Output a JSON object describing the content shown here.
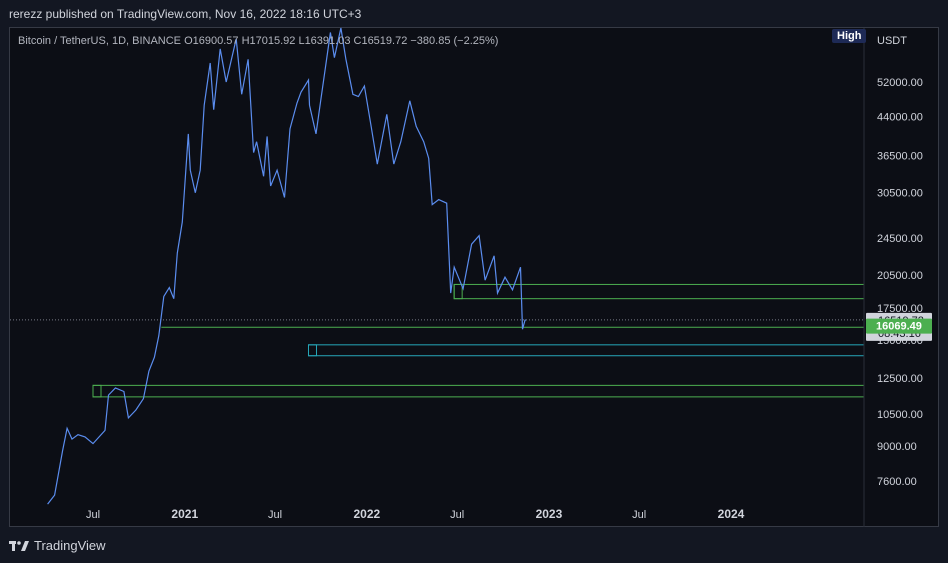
{
  "header": {
    "publish_line": "rerezz published on TradingView.com, Nov 16, 2022 18:16 UTC+3",
    "symbol_line": "Bitcoin / TetherUS, 1D, BINANCE  O16900.57  H17015.92  L16391.03  C16519.72  −380.85 (−2.25%)",
    "badge": "High",
    "currency": "USDT"
  },
  "footer": {
    "brand": "TradingView",
    "logo_icon": "tradingview-logo-icon"
  },
  "colors": {
    "background": "#0c0e15",
    "price_line": "#5b8def",
    "zone_green": "#4caf50",
    "zone_teal": "#26a6b8",
    "last_price_label": "#4caf50"
  },
  "chart_data": {
    "type": "line",
    "title": "",
    "scale": "log",
    "grid": false,
    "y_axis_ticks": [
      "52000.00",
      "44000.00",
      "36500.00",
      "30500.00",
      "24500.00",
      "20500.00",
      "17500.00",
      "15000.00",
      "12500.00",
      "10500.00",
      "9000.00",
      "7600.00"
    ],
    "y_axis_tick_values": [
      52000,
      44000,
      36500,
      30500,
      24500,
      20500,
      17500,
      15000,
      12500,
      10500,
      9000,
      7600
    ],
    "x_axis_ticks": [
      "Jul",
      "2021",
      "Jul",
      "2022",
      "Jul",
      "2023",
      "Jul",
      "2024"
    ],
    "x_axis_tick_dates": [
      "2020-07-01",
      "2021-01-01",
      "2021-07-01",
      "2022-01-01",
      "2022-07-01",
      "2023-01-01",
      "2023-07-01",
      "2024-01-01"
    ],
    "series": [
      {
        "color": "#5b8def",
        "points": [
          [
            "2020-04-01",
            6800
          ],
          [
            "2020-04-15",
            7100
          ],
          [
            "2020-05-01",
            8800
          ],
          [
            "2020-05-10",
            9800
          ],
          [
            "2020-05-20",
            9300
          ],
          [
            "2020-06-01",
            9500
          ],
          [
            "2020-06-15",
            9400
          ],
          [
            "2020-07-01",
            9100
          ],
          [
            "2020-07-25",
            9700
          ],
          [
            "2020-08-01",
            11500
          ],
          [
            "2020-08-15",
            11900
          ],
          [
            "2020-09-01",
            11700
          ],
          [
            "2020-09-10",
            10300
          ],
          [
            "2020-09-25",
            10700
          ],
          [
            "2020-10-10",
            11300
          ],
          [
            "2020-10-21",
            12900
          ],
          [
            "2020-11-01",
            13800
          ],
          [
            "2020-11-10",
            15300
          ],
          [
            "2020-11-20",
            18500
          ],
          [
            "2020-12-01",
            19300
          ],
          [
            "2020-12-10",
            18300
          ],
          [
            "2020-12-17",
            22800
          ],
          [
            "2020-12-27",
            26500
          ],
          [
            "2021-01-08",
            40500
          ],
          [
            "2021-01-12",
            34000
          ],
          [
            "2021-01-22",
            30500
          ],
          [
            "2021-02-01",
            34000
          ],
          [
            "2021-02-09",
            46500
          ],
          [
            "2021-02-21",
            57000
          ],
          [
            "2021-02-28",
            45500
          ],
          [
            "2021-03-13",
            61000
          ],
          [
            "2021-03-25",
            52000
          ],
          [
            "2021-04-14",
            64000
          ],
          [
            "2021-04-25",
            49000
          ],
          [
            "2021-05-08",
            58000
          ],
          [
            "2021-05-19",
            37000
          ],
          [
            "2021-05-25",
            39000
          ],
          [
            "2021-06-08",
            33000
          ],
          [
            "2021-06-15",
            40000
          ],
          [
            "2021-06-22",
            31500
          ],
          [
            "2021-07-05",
            34000
          ],
          [
            "2021-07-20",
            29800
          ],
          [
            "2021-07-31",
            41500
          ],
          [
            "2021-08-14",
            47000
          ],
          [
            "2021-08-22",
            49500
          ],
          [
            "2021-09-06",
            52500
          ],
          [
            "2021-09-08",
            46500
          ],
          [
            "2021-09-21",
            40500
          ],
          [
            "2021-10-01",
            48000
          ],
          [
            "2021-10-20",
            66000
          ],
          [
            "2021-10-28",
            58500
          ],
          [
            "2021-11-10",
            68800
          ],
          [
            "2021-11-20",
            58000
          ],
          [
            "2021-12-04",
            49000
          ],
          [
            "2021-12-15",
            48500
          ],
          [
            "2021-12-27",
            51000
          ],
          [
            "2022-01-10",
            41800
          ],
          [
            "2022-01-22",
            35000
          ],
          [
            "2022-02-10",
            44500
          ],
          [
            "2022-02-24",
            35000
          ],
          [
            "2022-03-10",
            39000
          ],
          [
            "2022-03-28",
            47500
          ],
          [
            "2022-04-10",
            42000
          ],
          [
            "2022-04-25",
            39000
          ],
          [
            "2022-05-05",
            36000
          ],
          [
            "2022-05-12",
            28800
          ],
          [
            "2022-05-25",
            29500
          ],
          [
            "2022-06-10",
            29000
          ],
          [
            "2022-06-18",
            18800
          ],
          [
            "2022-06-25",
            21300
          ],
          [
            "2022-07-13",
            19200
          ],
          [
            "2022-07-30",
            23800
          ],
          [
            "2022-08-14",
            24800
          ],
          [
            "2022-08-26",
            20000
          ],
          [
            "2022-09-13",
            22500
          ],
          [
            "2022-09-20",
            18800
          ],
          [
            "2022-10-05",
            20300
          ],
          [
            "2022-10-20",
            19100
          ],
          [
            "2022-11-05",
            21300
          ],
          [
            "2022-11-09",
            15800
          ],
          [
            "2022-11-14",
            16500
          ],
          [
            "2022-11-16",
            16519.72
          ]
        ]
      }
    ],
    "zones": [
      {
        "color": "#4caf50",
        "from": "2022-06-25",
        "y_low": 18300,
        "y_high": 19600
      },
      {
        "color": "#26a6b8",
        "from": "2021-09-06",
        "y_low": 13900,
        "y_high": 14650
      },
      {
        "color": "#4caf50",
        "from": "2020-07-01",
        "y_low": 11400,
        "y_high": 12050
      }
    ],
    "horizontal_lines": [
      {
        "color": "#4caf50",
        "from": "2020-11-15",
        "y": 15950
      }
    ],
    "dotted_line": {
      "y": 16519.72
    },
    "last_price": {
      "value": "16519.72",
      "countdown": "08:43:16"
    },
    "level_label": {
      "value": "16069.49",
      "y": 16069.49
    }
  }
}
